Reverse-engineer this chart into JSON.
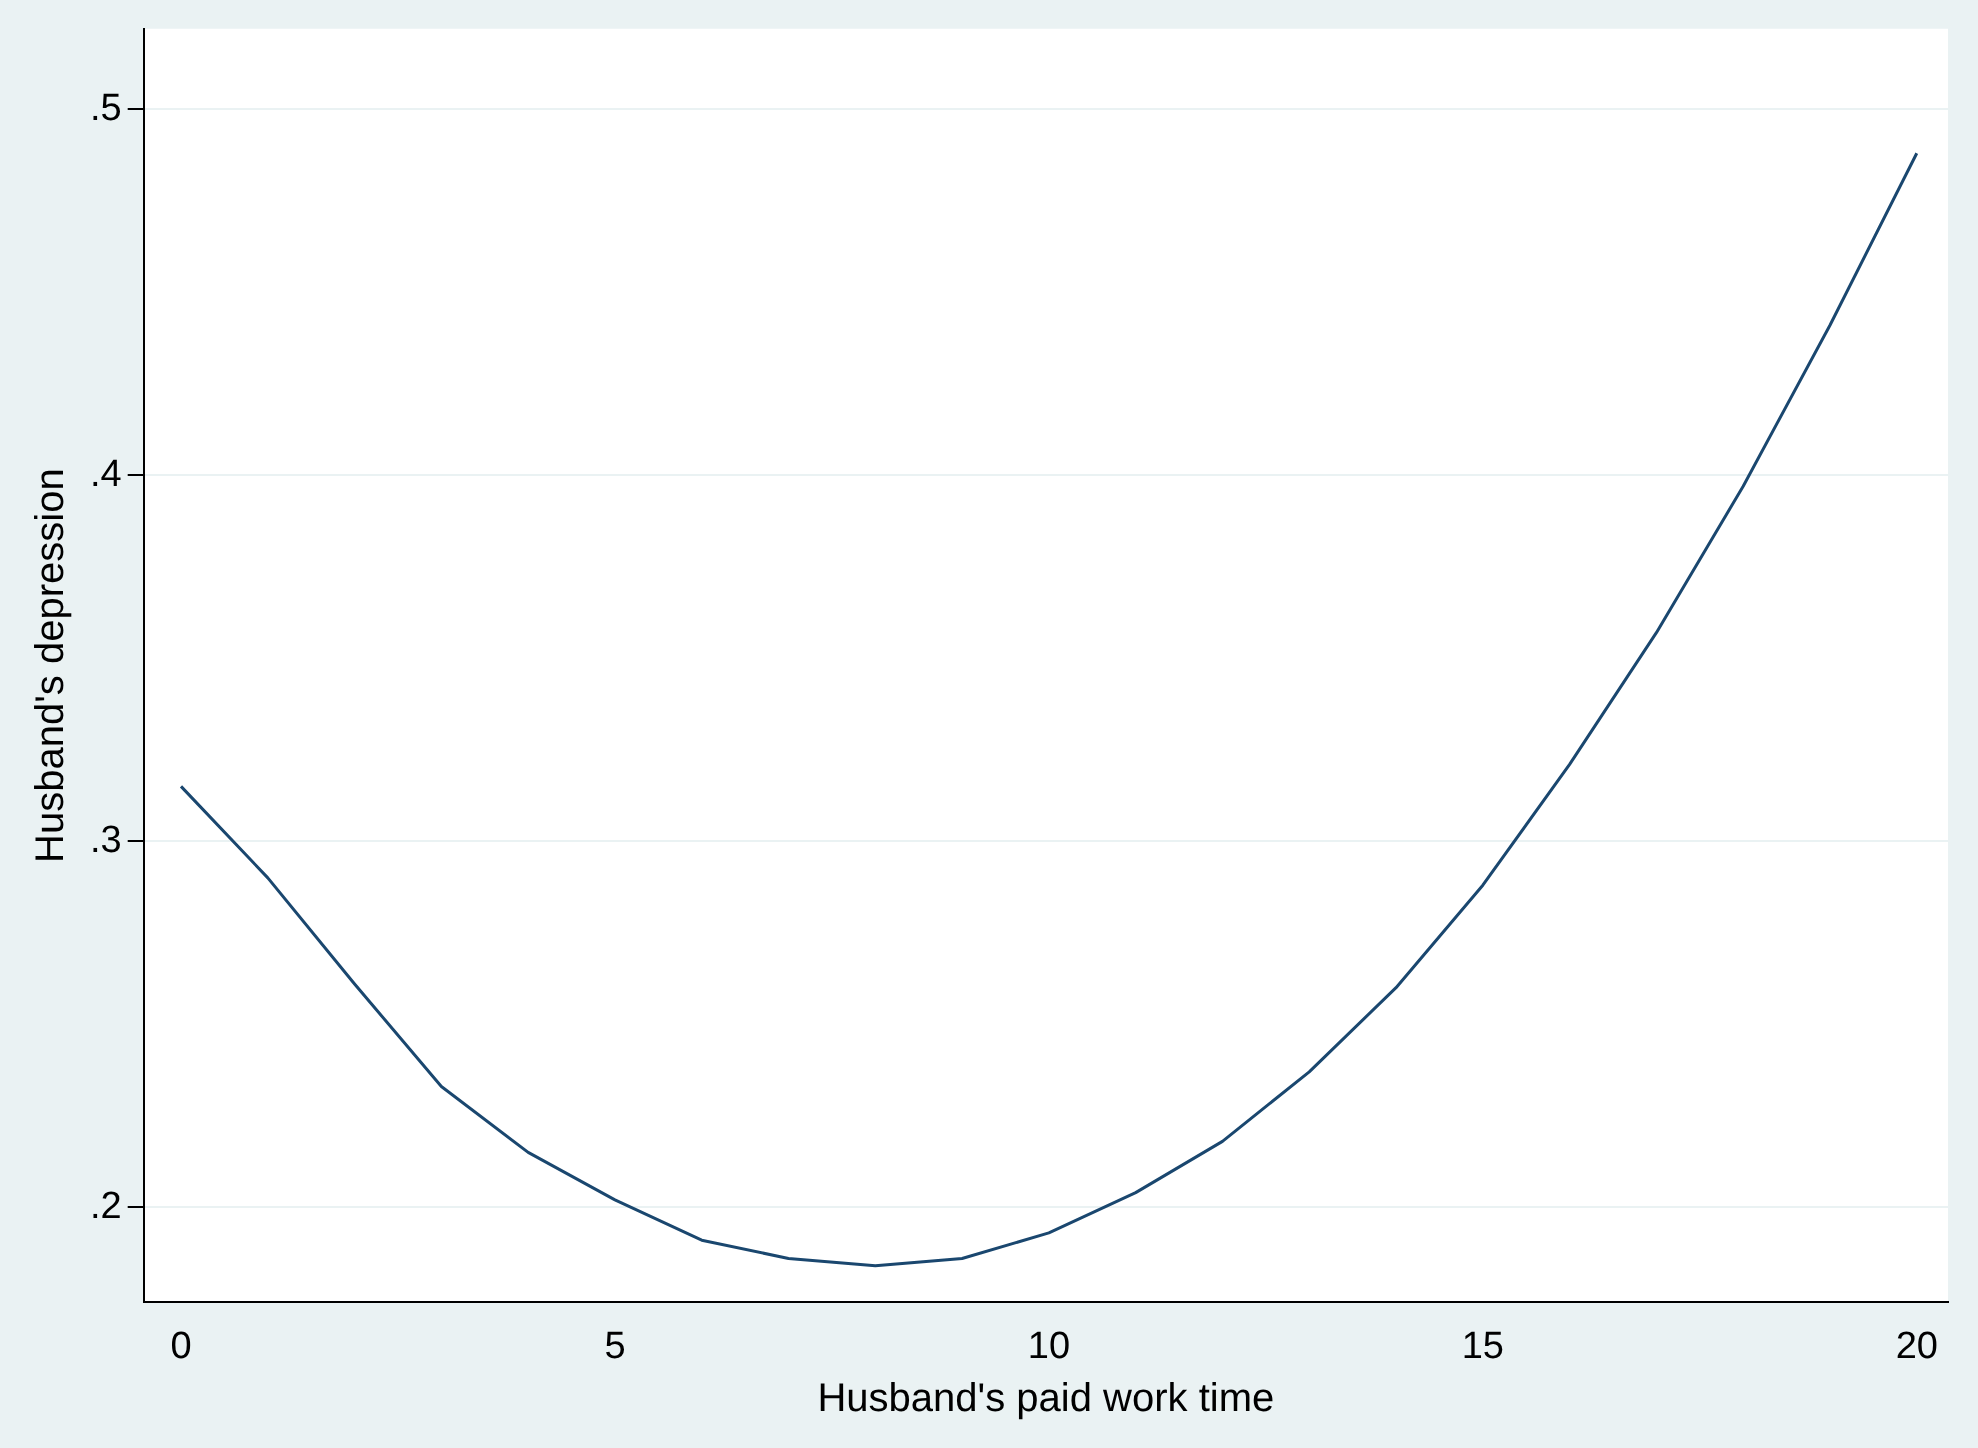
{
  "chart_data": {
    "type": "line",
    "xlabel": "Husband's paid work time",
    "ylabel": "Husband's depression",
    "x": [
      0,
      1,
      2,
      3,
      4,
      5,
      6,
      7,
      8,
      9,
      10,
      11,
      12,
      13,
      14,
      15,
      16,
      17,
      18,
      19,
      20
    ],
    "series": [
      {
        "color": "#1a476f",
        "values": [
          0.315,
          0.29,
          0.261,
          0.233,
          0.215,
          0.202,
          0.191,
          0.186,
          0.184,
          0.186,
          0.193,
          0.204,
          0.218,
          0.237,
          0.26,
          0.288,
          0.321,
          0.357,
          0.397,
          0.441,
          0.488
        ]
      }
    ],
    "xlim": [
      -0.43,
      20.36
    ],
    "xticks": [
      0,
      5,
      10,
      15,
      20
    ],
    "ylim": [
      0.174,
      0.522
    ],
    "yticks": [
      {
        "value": 0.2,
        "label": ".2"
      },
      {
        "value": 0.3,
        "label": ".3"
      },
      {
        "value": 0.4,
        "label": ".4"
      },
      {
        "value": 0.5,
        "label": ".5"
      }
    ],
    "grid": "y",
    "legend": false,
    "marker": "none",
    "line_style": "solid"
  }
}
